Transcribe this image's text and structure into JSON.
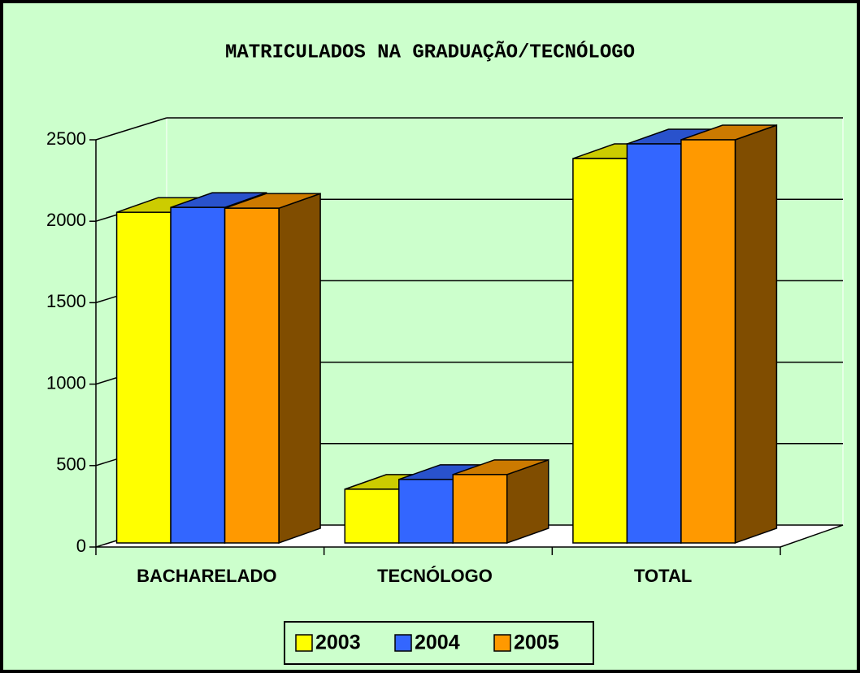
{
  "chart_data": {
    "type": "bar3d",
    "title": "MATRICULADOS NA GRADUAÇÃO/TECNÓLOGO",
    "categories": [
      "BACHARELADO",
      "TECNÓLOGO",
      "TOTAL"
    ],
    "series": [
      {
        "name": "2003",
        "color": "#ffff00",
        "values": [
          2030,
          330,
          2360
        ]
      },
      {
        "name": "2004",
        "color": "#3366ff",
        "values": [
          2060,
          390,
          2450
        ]
      },
      {
        "name": "2005",
        "color": "#ff9900",
        "values": [
          2055,
          420,
          2475
        ]
      }
    ],
    "ylim": [
      0,
      2500
    ],
    "yticks": [
      0,
      500,
      1000,
      1500,
      2000,
      2500
    ],
    "grid": true,
    "legend": "bottom"
  }
}
